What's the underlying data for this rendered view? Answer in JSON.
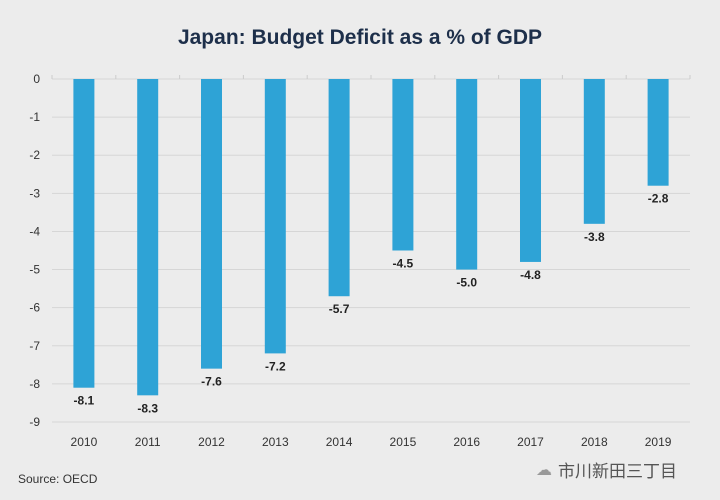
{
  "chart_data": {
    "type": "bar",
    "title": "Japan: Budget Deficit as a % of GDP",
    "categories": [
      "2010",
      "2011",
      "2012",
      "2013",
      "2014",
      "2015",
      "2016",
      "2017",
      "2018",
      "2019"
    ],
    "values": [
      -8.1,
      -8.3,
      -7.6,
      -7.2,
      -5.7,
      -4.5,
      -5.0,
      -4.8,
      -3.8,
      -2.8
    ],
    "data_labels": [
      "-8.1",
      "-8.3",
      "-7.6",
      "-7.2",
      "-5.7",
      "-4.5",
      "-5.0",
      "-4.8",
      "-3.8",
      "-2.8"
    ],
    "ylim": [
      -9,
      0
    ],
    "yticks": [
      "0",
      "-1",
      "-2",
      "-3",
      "-4",
      "-5",
      "-6",
      "-7",
      "-8",
      "-9"
    ],
    "xlabel": "",
    "ylabel": "",
    "grid": true,
    "bar_color": "#2ea3d6"
  },
  "source": "Source: OECD",
  "watermark": {
    "icon": "wechat-icon",
    "text": "市川新田三丁目"
  }
}
